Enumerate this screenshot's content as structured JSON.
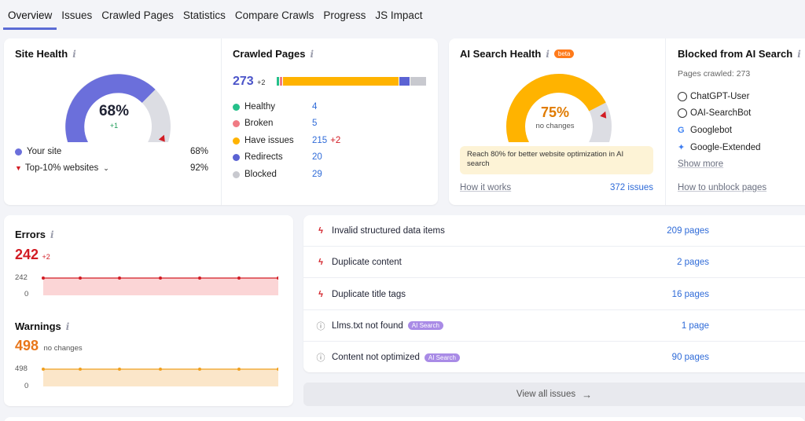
{
  "tabs": [
    "Overview",
    "Issues",
    "Crawled Pages",
    "Statistics",
    "Compare Crawls",
    "Progress",
    "JS Impact"
  ],
  "site_health": {
    "title": "Site Health",
    "value": "68%",
    "delta": "+1",
    "gauge_fraction": 0.68,
    "your_site_label": "Your site",
    "your_site_value": "68%",
    "top10_label": "Top-10% websites",
    "top10_value": "92%",
    "colors": {
      "gauge": "#6b6fdb",
      "rest": "#dcdde3",
      "marker": "#d21c24"
    }
  },
  "crawled_pages": {
    "title": "Crawled Pages",
    "total": "273",
    "delta": "+2",
    "segments": [
      {
        "label": "Healthy",
        "value": "4",
        "color": "#25c08a"
      },
      {
        "label": "Broken",
        "value": "5",
        "color": "#f07b84"
      },
      {
        "label": "Have issues",
        "value": "215",
        "extra": "+2",
        "color": "#ffb300"
      },
      {
        "label": "Redirects",
        "value": "20",
        "color": "#5b63d3"
      },
      {
        "label": "Blocked",
        "value": "29",
        "color": "#c8c9cf"
      }
    ]
  },
  "ai_health": {
    "title": "AI Search Health",
    "beta": "beta",
    "value": "75%",
    "sub": "no changes",
    "gauge_fraction": 0.75,
    "tip": "Reach 80% for better website optimization in AI search",
    "how_link": "How it works",
    "issues_link": "372 issues",
    "colors": {
      "gauge": "#ffb300",
      "rest": "#dcdde3",
      "value": "#e07b00"
    }
  },
  "blocked_ai": {
    "title": "Blocked from AI Search",
    "pages_crawled": "Pages crawled: 273",
    "bots": [
      {
        "name": "ChatGPT-User",
        "icon": "openai-icon"
      },
      {
        "name": "OAI-SearchBot",
        "icon": "openai-icon"
      },
      {
        "name": "Googlebot",
        "icon": "google-icon"
      },
      {
        "name": "Google-Extended",
        "icon": "gemini-icon"
      }
    ],
    "show_more": "Show more",
    "unblock_link": "How to unblock pages"
  },
  "errors": {
    "title": "Errors",
    "value": "242",
    "delta": "+2",
    "axis_top": "242",
    "axis_bottom": "0",
    "color": "#d21c24",
    "fill": "#fbd5d6"
  },
  "warnings": {
    "title": "Warnings",
    "value": "498",
    "sub": "no changes",
    "axis_top": "498",
    "axis_bottom": "0",
    "color": "#f0a020",
    "fill": "#fbe6c9"
  },
  "issues": [
    {
      "label": "Invalid structured data items",
      "count": "209 pages",
      "type": "error"
    },
    {
      "label": "Duplicate content",
      "count": "2 pages",
      "type": "error"
    },
    {
      "label": "Duplicate title tags",
      "count": "16 pages",
      "type": "error"
    },
    {
      "label": "Llms.txt not found",
      "count": "1 page",
      "type": "notice",
      "badge": "AI Search"
    },
    {
      "label": "Content not optimized",
      "count": "90 pages",
      "type": "notice",
      "badge": "AI Search"
    }
  ],
  "view_all": "View all issues"
}
